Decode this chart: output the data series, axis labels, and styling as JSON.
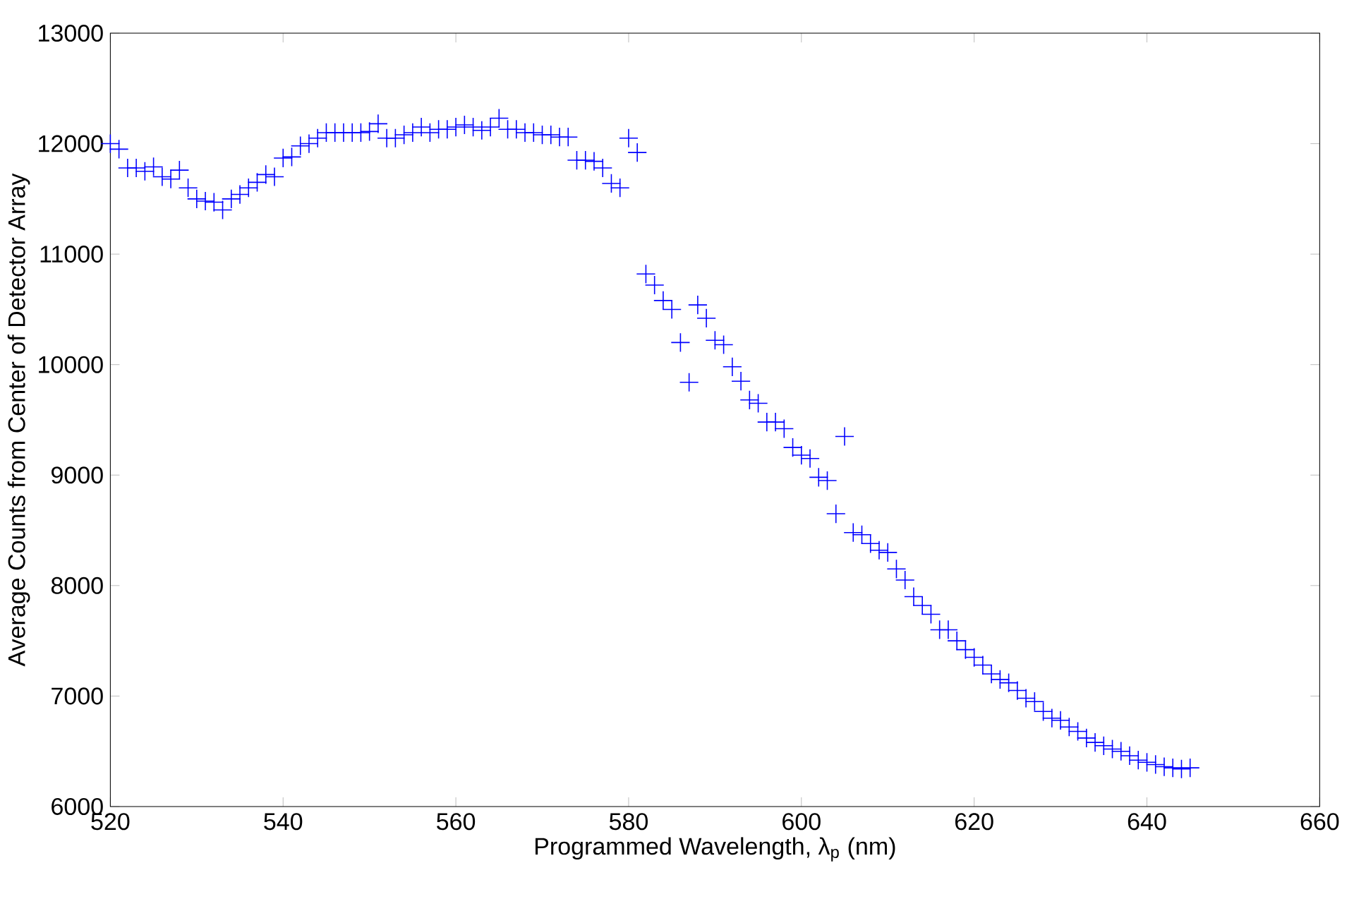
{
  "chart_data": {
    "type": "scatter",
    "xlabel": "Programmed Wavelength, λ$_{p}$ (nm)",
    "ylabel": "Average Counts from Center of Detector Array",
    "marker": "cross",
    "grid": false,
    "xlim": [
      520,
      660
    ],
    "ylim": [
      6000,
      13000
    ],
    "xticks": [
      520,
      540,
      560,
      580,
      600,
      620,
      640,
      660
    ],
    "yticks": [
      6000,
      7000,
      8000,
      9000,
      10000,
      11000,
      12000,
      13000
    ],
    "series": [
      {
        "color": "#0000ff",
        "x": [
          520,
          521,
          522,
          523,
          524,
          525,
          526,
          527,
          528,
          529,
          530,
          531,
          532,
          533,
          534,
          535,
          536,
          537,
          538,
          539,
          540,
          541,
          542,
          543,
          544,
          545,
          546,
          547,
          548,
          549,
          550,
          551,
          552,
          553,
          554,
          555,
          556,
          557,
          558,
          559,
          560,
          561,
          562,
          563,
          564,
          565,
          566,
          567,
          568,
          569,
          570,
          571,
          572,
          573,
          574,
          575,
          576,
          577,
          578,
          579,
          580,
          581,
          582,
          583,
          584,
          585,
          586,
          587,
          588,
          589,
          590,
          591,
          592,
          593,
          594,
          595,
          596,
          597,
          598,
          599,
          600,
          601,
          602,
          603,
          604,
          605,
          606,
          607,
          608,
          609,
          610,
          611,
          612,
          613,
          614,
          615,
          616,
          617,
          618,
          619,
          620,
          621,
          622,
          623,
          624,
          625,
          626,
          627,
          628,
          629,
          630,
          631,
          632,
          633,
          634,
          635,
          636,
          637,
          638,
          639,
          640,
          641,
          642,
          643,
          644,
          645
        ],
        "values": [
          12000,
          11950,
          11780,
          11780,
          11750,
          11790,
          11700,
          11680,
          11760,
          11600,
          11500,
          11480,
          11470,
          11400,
          11500,
          11540,
          11600,
          11650,
          11720,
          11700,
          11870,
          11880,
          11980,
          12000,
          12050,
          12100,
          12100,
          12100,
          12100,
          12100,
          12110,
          12180,
          12050,
          12050,
          12080,
          12100,
          12150,
          12100,
          12130,
          12130,
          12150,
          12170,
          12150,
          12120,
          12150,
          12230,
          12130,
          12130,
          12100,
          12100,
          12080,
          12080,
          12060,
          12060,
          11850,
          11850,
          11840,
          11780,
          11640,
          11600,
          12050,
          11920,
          10820,
          10720,
          10580,
          10500,
          10200,
          9840,
          10540,
          10420,
          10220,
          10180,
          9980,
          9850,
          9680,
          9650,
          9480,
          9480,
          9420,
          9250,
          9180,
          9150,
          8980,
          8950,
          8650,
          9350,
          8480,
          8460,
          8380,
          8320,
          8300,
          8150,
          8050,
          7900,
          7820,
          7740,
          7600,
          7600,
          7500,
          7420,
          7350,
          7280,
          7200,
          7150,
          7120,
          7050,
          6980,
          6950,
          6860,
          6800,
          6780,
          6720,
          6680,
          6620,
          6580,
          6550,
          6520,
          6500,
          6460,
          6420,
          6400,
          6380,
          6360,
          6350,
          6340,
          6350
        ]
      }
    ]
  }
}
